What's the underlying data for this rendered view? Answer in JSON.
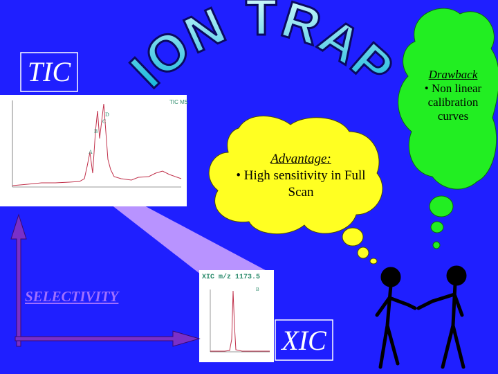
{
  "title": "ION TRAP",
  "tic_label": "TIC",
  "drawback": {
    "heading": "Drawback",
    "text": "• Non linear calibration curves"
  },
  "advantage": {
    "heading": "Advantage:",
    "text": "• High sensitivity in Full Scan"
  },
  "selectivity": "SELECTIVITY",
  "xic_label": "XIC",
  "tic_chart": {
    "legend": "TIC MS",
    "peaks": [
      "D",
      "C",
      "B",
      "A"
    ]
  },
  "xic_chart": {
    "title": "XIC m/z 1173.5",
    "peak": "B"
  }
}
